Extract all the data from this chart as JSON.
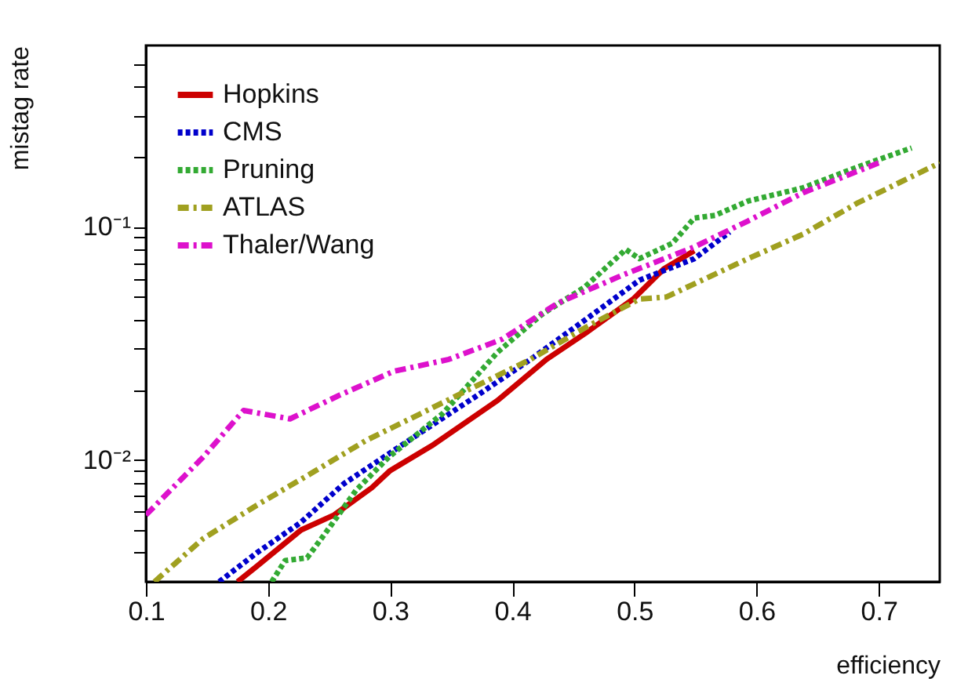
{
  "chart_data": {
    "type": "line",
    "xlabel": "efficiency",
    "ylabel": "mistag rate",
    "log": "y",
    "xlim": [
      0.1,
      0.75
    ],
    "ylim": [
      0.003,
      0.6
    ],
    "xticks": [
      0.1,
      0.2,
      0.3,
      0.4,
      0.5,
      0.6,
      0.7
    ],
    "yticks": [
      {
        "value": 0.004,
        "label": null
      },
      {
        "value": 0.005,
        "label": null
      },
      {
        "value": 0.006,
        "label": null
      },
      {
        "value": 0.007,
        "label": null
      },
      {
        "value": 0.008,
        "label": null
      },
      {
        "value": 0.009,
        "label": null
      },
      {
        "value": 0.01,
        "label": "10⁻²"
      },
      {
        "value": 0.02,
        "label": null
      },
      {
        "value": 0.03,
        "label": null
      },
      {
        "value": 0.04,
        "label": null
      },
      {
        "value": 0.05,
        "label": null
      },
      {
        "value": 0.06,
        "label": null
      },
      {
        "value": 0.07,
        "label": null
      },
      {
        "value": 0.08,
        "label": null
      },
      {
        "value": 0.09,
        "label": null
      },
      {
        "value": 0.1,
        "label": "10⁻¹"
      },
      {
        "value": 0.2,
        "label": null
      },
      {
        "value": 0.3,
        "label": null
      },
      {
        "value": 0.4,
        "label": null
      },
      {
        "value": 0.5,
        "label": null
      }
    ],
    "grid": false,
    "legend": "top left",
    "marker": "none",
    "series": [
      {
        "name": "Hopkins",
        "color": "#cc0000",
        "line_style": "solid",
        "x": [
          0.175,
          0.191,
          0.227,
          0.254,
          0.285,
          0.3,
          0.334,
          0.388,
          0.428,
          0.46,
          0.499,
          0.524,
          0.549
        ],
        "values": [
          0.003,
          0.0035,
          0.005,
          0.0058,
          0.0076,
          0.009,
          0.0115,
          0.018,
          0.027,
          0.035,
          0.049,
          0.066,
          0.079
        ]
      },
      {
        "name": "CMS",
        "color": "#0000cc",
        "line_style": "dotted",
        "x": [
          0.16,
          0.191,
          0.227,
          0.262,
          0.325,
          0.37,
          0.415,
          0.46,
          0.504,
          0.549,
          0.578
        ],
        "values": [
          0.003,
          0.004,
          0.0054,
          0.0079,
          0.0131,
          0.0187,
          0.027,
          0.04,
          0.059,
          0.073,
          0.095
        ]
      },
      {
        "name": "Pruning",
        "color": "#33aa33",
        "line_style": "dotted",
        "x": [
          0.203,
          0.214,
          0.232,
          0.25,
          0.272,
          0.299,
          0.343,
          0.388,
          0.424,
          0.459,
          0.493,
          0.504,
          0.531,
          0.549,
          0.566,
          0.593,
          0.638,
          0.682,
          0.727
        ],
        "values": [
          0.003,
          0.0037,
          0.0038,
          0.0051,
          0.0074,
          0.0103,
          0.0158,
          0.029,
          0.042,
          0.055,
          0.08,
          0.073,
          0.085,
          0.109,
          0.112,
          0.129,
          0.147,
          0.18,
          0.218
        ]
      },
      {
        "name": "ATLAS",
        "color": "#a0a020",
        "line_style": "dashed",
        "x": [
          0.107,
          0.147,
          0.191,
          0.236,
          0.28,
          0.325,
          0.37,
          0.415,
          0.46,
          0.504,
          0.526,
          0.593,
          0.638,
          0.682,
          0.75
        ],
        "values": [
          0.003,
          0.0046,
          0.0064,
          0.0088,
          0.0121,
          0.0158,
          0.0207,
          0.027,
          0.037,
          0.049,
          0.05,
          0.073,
          0.093,
          0.126,
          0.188
        ]
      },
      {
        "name": "Thaler/Wang",
        "color": "#dd11cc",
        "line_style": "dashed",
        "x": [
          0.1,
          0.147,
          0.18,
          0.218,
          0.259,
          0.303,
          0.348,
          0.392,
          0.437,
          0.49,
          0.549,
          0.593,
          0.638,
          0.7
        ],
        "values": [
          0.0058,
          0.0103,
          0.0163,
          0.015,
          0.019,
          0.024,
          0.027,
          0.033,
          0.047,
          0.062,
          0.082,
          0.106,
          0.14,
          0.188
        ]
      }
    ]
  }
}
